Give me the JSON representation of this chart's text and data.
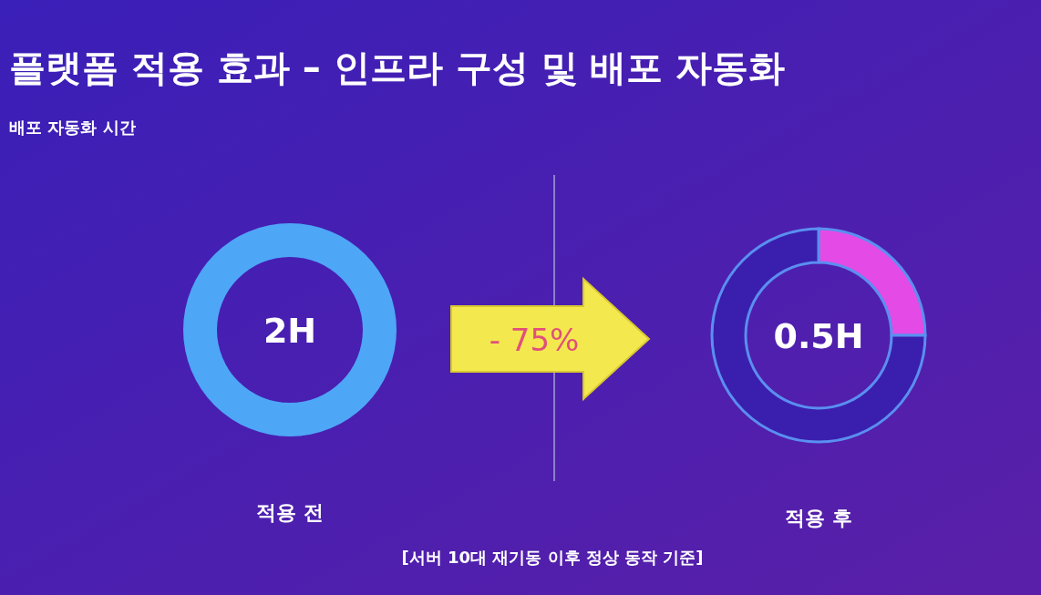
{
  "chart_data": [
    {
      "type": "donut",
      "title": "플랫폼 적용 효과 – 인프라 구성 및 배포 자동화",
      "subtitle": "배포 자동화 시간",
      "categories": [
        null
      ],
      "values": [
        100
      ],
      "colors": [
        "#4ea6f7"
      ],
      "annotations": [
        "2H"
      ],
      "xlabel": "적용 전"
    },
    {
      "type": "donut",
      "categories": [
        null,
        null
      ],
      "values": [
        25,
        75
      ],
      "colors": [
        "#e44be6",
        "#3a1fae"
      ],
      "annotations": [
        "0.5H"
      ],
      "xlabel": "적용 후"
    },
    {
      "type": "other",
      "annotations": [
        "- 75%",
        "[서버 10대 재기동 이후 정상 동작 기준]"
      ]
    }
  ]
}
